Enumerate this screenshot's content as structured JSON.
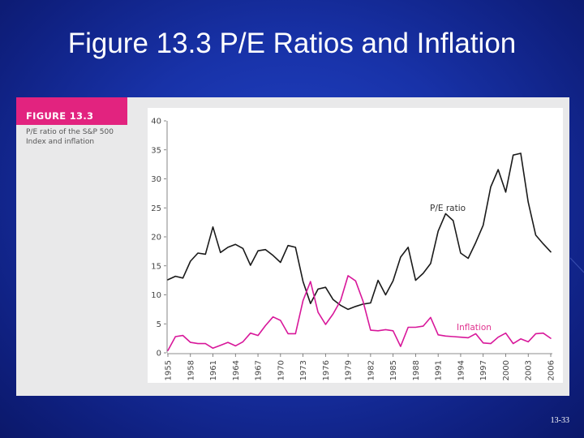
{
  "slide": {
    "title": "Figure 13.3 P/E Ratios and Inflation",
    "page_number": "13-33"
  },
  "figure": {
    "tag": "FIGURE 13.3",
    "caption_line1": "P/E ratio of the S&P 500",
    "caption_line2": "Index and inflation"
  },
  "colors": {
    "pe_line": "#1a1a1a",
    "inflation_line": "#d8179a",
    "inflation_label": "#e0338f",
    "tag_background": "#e2237f"
  },
  "chart_data": {
    "type": "line",
    "title": "",
    "xlabel": "",
    "ylabel": "",
    "x_tick_labels": [
      "1955",
      "1958",
      "1961",
      "1964",
      "1967",
      "1970",
      "1973",
      "1976",
      "1979",
      "1982",
      "1985",
      "1988",
      "1991",
      "1994",
      "1997",
      "2000",
      "2003",
      "2006"
    ],
    "y_tick_labels": [
      "0",
      "5",
      "10",
      "15",
      "20",
      "25",
      "30",
      "35",
      "40"
    ],
    "ylim": [
      0,
      40
    ],
    "xlim": [
      1955,
      2006
    ],
    "grid": false,
    "legend": "inline labels",
    "x": [
      1955,
      1956,
      1957,
      1958,
      1959,
      1960,
      1961,
      1962,
      1963,
      1964,
      1965,
      1966,
      1967,
      1968,
      1969,
      1970,
      1971,
      1972,
      1973,
      1974,
      1975,
      1976,
      1977,
      1978,
      1979,
      1980,
      1981,
      1982,
      1983,
      1984,
      1985,
      1986,
      1987,
      1988,
      1989,
      1990,
      1991,
      1992,
      1993,
      1994,
      1995,
      1996,
      1997,
      1998,
      1999,
      2000,
      2001,
      2002,
      2003,
      2004,
      2005,
      2006
    ],
    "series": [
      {
        "name": "P/E ratio",
        "values": [
          12.6,
          13.2,
          12.9,
          15.8,
          17.2,
          17.0,
          21.7,
          17.3,
          18.2,
          18.7,
          18.0,
          15.1,
          17.6,
          17.8,
          16.8,
          15.6,
          18.5,
          18.2,
          12.3,
          8.5,
          11.0,
          11.3,
          9.2,
          8.2,
          7.5,
          8.0,
          8.4,
          8.6,
          12.5,
          10.0,
          12.4,
          16.5,
          18.2,
          12.5,
          13.7,
          15.4,
          21.0,
          24.0,
          22.8,
          17.2,
          16.3,
          19.0,
          22.0,
          28.6,
          31.6,
          27.7,
          34.1,
          34.4,
          26.0,
          20.3,
          18.8,
          17.4
        ]
      },
      {
        "name": "Inflation",
        "values": [
          0.4,
          2.8,
          3.0,
          1.8,
          1.6,
          1.6,
          0.8,
          1.3,
          1.8,
          1.2,
          1.9,
          3.4,
          3.0,
          4.7,
          6.2,
          5.6,
          3.3,
          3.3,
          9.0,
          12.3,
          7.0,
          4.9,
          6.7,
          9.0,
          13.3,
          12.4,
          8.9,
          3.9,
          3.8,
          4.0,
          3.8,
          1.1,
          4.4,
          4.4,
          4.6,
          6.1,
          3.1,
          2.9,
          2.8,
          2.7,
          2.6,
          3.3,
          1.7,
          1.6,
          2.7,
          3.4,
          1.6,
          2.4,
          1.9,
          3.3,
          3.4,
          2.5
        ]
      }
    ]
  }
}
